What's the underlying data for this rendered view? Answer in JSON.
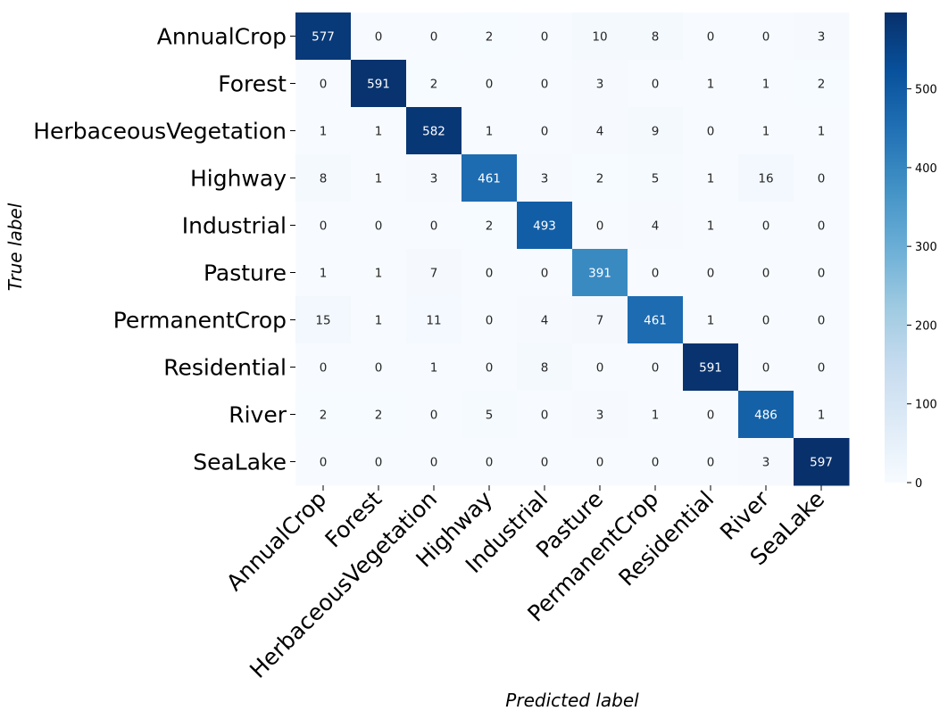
{
  "chart_data": {
    "type": "heatmap",
    "title": "",
    "xlabel": "Predicted label",
    "ylabel": "True label",
    "x_categories": [
      "AnnualCrop",
      "Forest",
      "HerbaceousVegetation",
      "Highway",
      "Industrial",
      "Pasture",
      "PermanentCrop",
      "Residential",
      "River",
      "SeaLake"
    ],
    "y_categories": [
      "AnnualCrop",
      "Forest",
      "HerbaceousVegetation",
      "Highway",
      "Industrial",
      "Pasture",
      "PermanentCrop",
      "Residential",
      "River",
      "SeaLake"
    ],
    "values": [
      [
        577,
        0,
        0,
        2,
        0,
        10,
        8,
        0,
        0,
        3
      ],
      [
        0,
        591,
        2,
        0,
        0,
        3,
        0,
        1,
        1,
        2
      ],
      [
        1,
        1,
        582,
        1,
        0,
        4,
        9,
        0,
        1,
        1
      ],
      [
        8,
        1,
        3,
        461,
        3,
        2,
        5,
        1,
        16,
        0
      ],
      [
        0,
        0,
        0,
        2,
        493,
        0,
        4,
        1,
        0,
        0
      ],
      [
        1,
        1,
        7,
        0,
        0,
        391,
        0,
        0,
        0,
        0
      ],
      [
        15,
        1,
        11,
        0,
        4,
        7,
        461,
        1,
        0,
        0
      ],
      [
        0,
        0,
        1,
        0,
        8,
        0,
        0,
        591,
        0,
        0
      ],
      [
        2,
        2,
        0,
        5,
        0,
        3,
        1,
        0,
        486,
        1
      ],
      [
        0,
        0,
        0,
        0,
        0,
        0,
        0,
        0,
        3,
        597
      ]
    ],
    "colormap": "Blues",
    "colorbar": {
      "range": [
        0,
        597
      ],
      "ticks": [
        0,
        100,
        200,
        300,
        400,
        500
      ]
    },
    "grid": false
  }
}
